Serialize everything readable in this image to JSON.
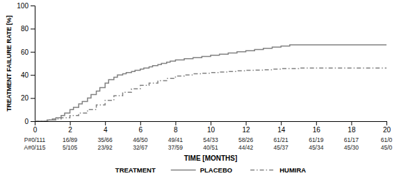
{
  "chart_data": {
    "type": "step",
    "xlabel": "TIME [MONTHS]",
    "ylabel": "TREATMENT FAILURE RATE [%]",
    "xlim": [
      0,
      20
    ],
    "ylim": [
      0,
      100
    ],
    "xticks": [
      0,
      2,
      4,
      6,
      8,
      10,
      12,
      14,
      16,
      18,
      20
    ],
    "yticks": [
      0,
      20,
      40,
      60,
      80,
      100
    ],
    "grid": false,
    "legend": "bottom",
    "legend_title": "TREATMENT",
    "series": [
      {
        "name": "PLACEBO",
        "color": "#808080",
        "line_style": "solid",
        "x": [
          0,
          0.5,
          0.7,
          1.0,
          1.2,
          1.5,
          1.7,
          2.0,
          2.2,
          2.5,
          2.7,
          3.0,
          3.2,
          3.5,
          3.7,
          4.0,
          4.2,
          4.5,
          4.7,
          5.0,
          5.2,
          5.5,
          5.7,
          6.0,
          6.2,
          6.5,
          6.7,
          7.0,
          7.2,
          7.5,
          7.7,
          8.0,
          8.5,
          9.0,
          9.5,
          10.0,
          10.5,
          11.0,
          11.5,
          12.0,
          12.5,
          13.0,
          13.5,
          14.0,
          14.5,
          15.0,
          16.0,
          17.0,
          18.0,
          19.0,
          20.0
        ],
        "values": [
          0,
          0,
          1,
          2,
          3,
          5,
          7,
          10,
          12,
          15,
          17,
          20,
          23,
          26,
          29,
          33,
          36,
          38,
          40,
          41,
          42,
          43,
          44,
          45,
          46,
          47,
          48,
          49,
          50,
          51,
          52,
          53,
          54,
          55,
          56,
          57,
          58,
          59,
          60,
          61,
          62,
          63,
          64,
          65,
          66,
          66,
          66,
          66,
          66,
          66,
          66
        ]
      },
      {
        "name": "HUMIRA",
        "color": "#808080",
        "line_style": "dashdot",
        "x": [
          0,
          0.5,
          0.8,
          1.2,
          1.5,
          2.0,
          2.5,
          3.0,
          3.5,
          4.0,
          4.5,
          5.0,
          5.5,
          6.0,
          6.5,
          7.0,
          7.5,
          8.0,
          8.5,
          9.0,
          9.5,
          10.0,
          10.5,
          11.0,
          11.5,
          12.0,
          12.5,
          13.0,
          13.5,
          14.0,
          15.0,
          16.0,
          17.0,
          18.0,
          19.0,
          20.0
        ],
        "values": [
          0,
          0,
          1,
          2,
          3,
          5,
          7,
          10,
          14,
          18,
          22,
          25,
          28,
          31,
          33,
          35,
          37,
          39,
          40,
          41,
          41.5,
          42,
          42.5,
          43,
          43.5,
          44,
          44.2,
          44.5,
          45,
          45.5,
          46,
          46,
          46,
          46,
          46,
          46
        ]
      }
    ],
    "table_rows": [
      [
        "P#0/111",
        "16/89",
        "35/66",
        "46/50",
        "49/41",
        "54/33",
        "58/26",
        "61/21",
        "61/19",
        "61/17",
        "61/0"
      ],
      [
        "A#0/115",
        "5/105",
        "23/92",
        "32/67",
        "37/59",
        "40/51",
        "44/42",
        "45/37",
        "45/34",
        "45/30",
        "45/0"
      ]
    ]
  }
}
